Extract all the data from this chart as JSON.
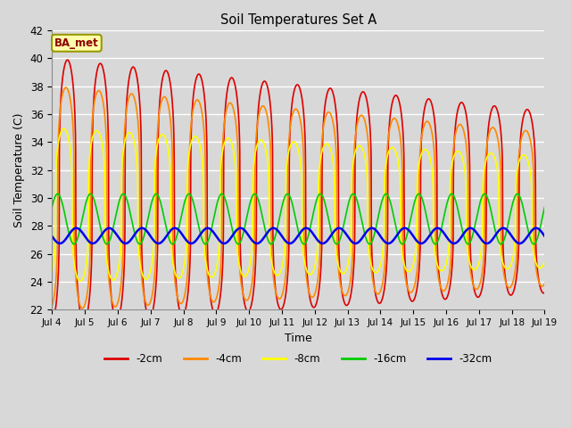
{
  "title": "Soil Temperatures Set A",
  "xlabel": "Time",
  "ylabel": "Soil Temperature (C)",
  "ylim": [
    22,
    42
  ],
  "xlim": [
    0,
    15
  ],
  "annotation": "BA_met",
  "bg_color": "#d8d8d8",
  "plot_bg_color": "#d8d8d8",
  "grid_color": "#ffffff",
  "tick_labels": [
    "Jul 4",
    "Jul 5",
    "Jul 6",
    "Jul 7",
    "Jul 8",
    "Jul 9",
    "Jul 10",
    "Jul 11",
    "Jul 12",
    "Jul 13",
    "Jul 14",
    "Jul 15",
    "Jul 16",
    "Jul 17",
    "Jul 18",
    "Jul 19"
  ],
  "legend": [
    {
      "label": "-2cm",
      "color": "#dd0000"
    },
    {
      "label": "-4cm",
      "color": "#ff8800"
    },
    {
      "label": "-8cm",
      "color": "#ffff00"
    },
    {
      "label": "-16cm",
      "color": "#00cc00"
    },
    {
      "label": "-32cm",
      "color": "#0000ee"
    }
  ],
  "series": {
    "period_hours": 24,
    "n_points": 2000,
    "duration_hours": 360,
    "mean_2cm": 30.5,
    "amp_2cm_start": 9.5,
    "amp_2cm_end": 6.5,
    "phase_2cm": -1.4,
    "mean_4cm": 30.0,
    "amp_4cm_start": 8.0,
    "amp_4cm_end": 5.5,
    "phase_4cm": -1.1,
    "mean_8cm": 29.5,
    "amp_8cm_start": 5.5,
    "amp_8cm_end": 4.0,
    "phase_8cm": -0.7,
    "mean_16cm": 28.5,
    "amp_16cm": 1.8,
    "phase_16cm": 0.5,
    "mean_32cm": 27.3,
    "amp_32cm": 0.55,
    "phase_32cm": 3.2,
    "sharpness": 3.5
  }
}
